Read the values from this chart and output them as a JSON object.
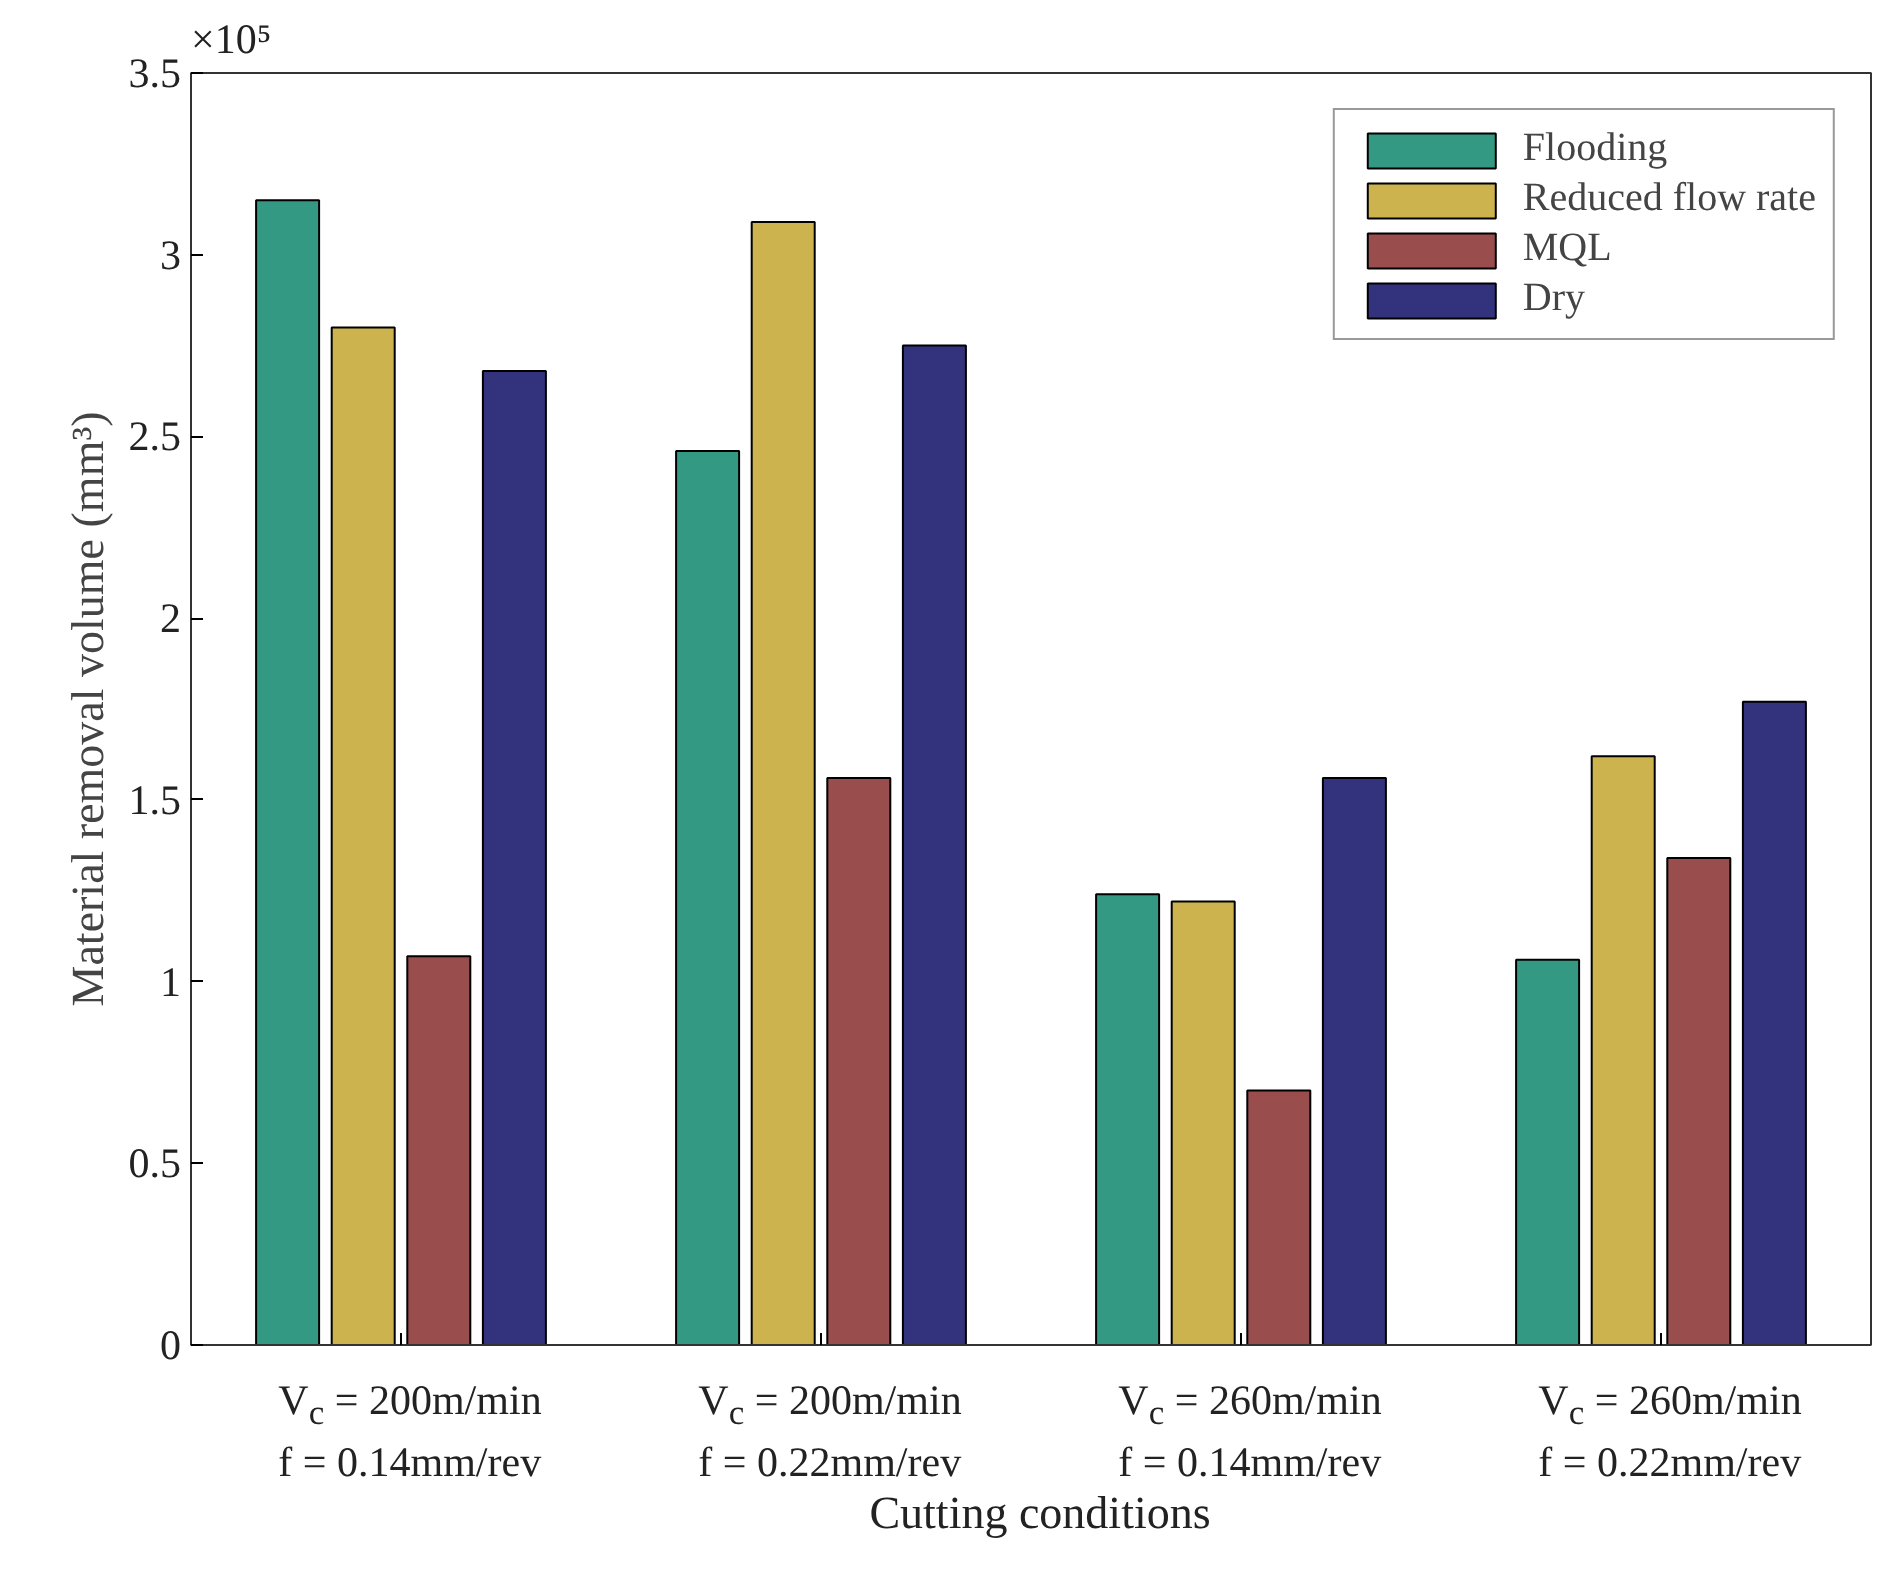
{
  "chart_data": {
    "type": "bar",
    "xlabel": "Cutting conditions",
    "ylabel": "Material removal volume (mm³)",
    "categories": [
      "V$_{c}$ = 200m/min\nf = 0.14mm/rev",
      "V$_{c}$ = 200m/min\nf = 0.22mm/rev",
      "V$_{c}$ = 260m/min\nf = 0.14mm/rev",
      "V$_{c}$ = 260m/min\nf = 0.22mm/rev"
    ],
    "series": [
      {
        "name": "Flooding",
        "color": "#339983",
        "values": [
          3.15,
          2.46,
          1.24,
          1.06
        ]
      },
      {
        "name": "Reduced flow rate",
        "color": "#ccb34d",
        "values": [
          2.8,
          3.09,
          1.22,
          1.62
        ]
      },
      {
        "name": "MQL",
        "color": "#994d4d",
        "values": [
          1.07,
          1.56,
          0.7,
          1.34
        ]
      },
      {
        "name": "Dry",
        "color": "#33337d",
        "values": [
          2.68,
          2.75,
          1.56,
          1.77
        ]
      }
    ],
    "ylim": [
      0,
      3.5
    ],
    "yticks": [
      0,
      0.5,
      1,
      1.5,
      2,
      2.5,
      3,
      3.5
    ],
    "annotations": [
      "×10⁵"
    ],
    "legend": "top right",
    "grid": false
  }
}
